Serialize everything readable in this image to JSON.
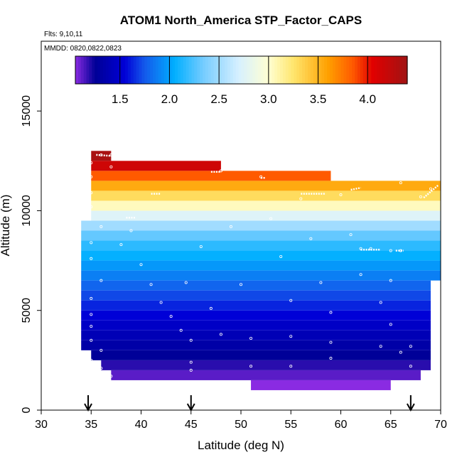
{
  "chart_data": {
    "type": "heatmap",
    "title": "ATOM1 North_America STP_Factor_CAPS",
    "flights_label": "Flts: 9,10,11",
    "dates_label": "MMDD: 0820,0822,0823",
    "xlabel": "Latitude (deg N)",
    "ylabel": "Altitude (m)",
    "xlim": [
      30,
      70
    ],
    "ylim": [
      0,
      18500
    ],
    "x_ticks": [
      30,
      35,
      40,
      45,
      50,
      55,
      60,
      65,
      70
    ],
    "y_ticks": [
      0,
      5000,
      10000,
      15000
    ],
    "colorbar": {
      "range": [
        1.05,
        4.4
      ],
      "ticks": [
        1.5,
        2.0,
        2.5,
        3.0,
        3.5,
        4.0
      ],
      "tick_labels": [
        "1.5",
        "2.0",
        "2.5",
        "3.0",
        "3.5",
        "4.0"
      ]
    },
    "altitude_bins": [
      {
        "bottom": 1000,
        "top": 1500,
        "value": 1.05,
        "xmin": 51,
        "xmax": 65
      },
      {
        "bottom": 1500,
        "top": 2000,
        "value": 1.12,
        "xmin": 37,
        "xmax": 68
      },
      {
        "bottom": 2000,
        "top": 2500,
        "value": 1.19,
        "xmin": 36,
        "xmax": 69
      },
      {
        "bottom": 2500,
        "top": 3000,
        "value": 1.26,
        "xmin": 35,
        "xmax": 69
      },
      {
        "bottom": 3000,
        "top": 3500,
        "value": 1.33,
        "xmin": 34,
        "xmax": 69
      },
      {
        "bottom": 3500,
        "top": 4000,
        "value": 1.4,
        "xmin": 34,
        "xmax": 69
      },
      {
        "bottom": 4000,
        "top": 4500,
        "value": 1.47,
        "xmin": 34,
        "xmax": 69
      },
      {
        "bottom": 4500,
        "top": 5000,
        "value": 1.55,
        "xmin": 34,
        "xmax": 69
      },
      {
        "bottom": 5000,
        "top": 5500,
        "value": 1.63,
        "xmin": 34,
        "xmax": 69
      },
      {
        "bottom": 5500,
        "top": 6000,
        "value": 1.71,
        "xmin": 34,
        "xmax": 69
      },
      {
        "bottom": 6000,
        "top": 6500,
        "value": 1.79,
        "xmin": 34,
        "xmax": 69
      },
      {
        "bottom": 6500,
        "top": 7000,
        "value": 1.88,
        "xmin": 34,
        "xmax": 70
      },
      {
        "bottom": 7000,
        "top": 7500,
        "value": 1.97,
        "xmin": 34,
        "xmax": 70
      },
      {
        "bottom": 7500,
        "top": 8000,
        "value": 2.06,
        "xmin": 34,
        "xmax": 70
      },
      {
        "bottom": 8000,
        "top": 8500,
        "value": 2.16,
        "xmin": 34,
        "xmax": 70
      },
      {
        "bottom": 8500,
        "top": 9000,
        "value": 2.3,
        "xmin": 34,
        "xmax": 70
      },
      {
        "bottom": 9000,
        "top": 9500,
        "value": 2.5,
        "xmin": 34,
        "xmax": 70
      },
      {
        "bottom": 9500,
        "top": 10000,
        "value": 2.75,
        "xmin": 35,
        "xmax": 70
      },
      {
        "bottom": 10000,
        "top": 10500,
        "value": 3.05,
        "xmin": 35,
        "xmax": 70
      },
      {
        "bottom": 10500,
        "top": 11000,
        "value": 3.3,
        "xmin": 35,
        "xmax": 70
      },
      {
        "bottom": 11000,
        "top": 11500,
        "value": 3.55,
        "xmin": 35,
        "xmax": 70
      },
      {
        "bottom": 11500,
        "top": 12000,
        "value": 3.85,
        "xmin": 35,
        "xmax": 59
      },
      {
        "bottom": 12000,
        "top": 12500,
        "value": 4.15,
        "xmin": 35,
        "xmax": 48
      },
      {
        "bottom": 12500,
        "top": 13000,
        "value": 4.35,
        "xmin": 35,
        "xmax": 37
      }
    ],
    "flight_track_points": [
      [
        35,
        12400
      ],
      [
        36,
        12800
      ],
      [
        37,
        12800
      ],
      [
        37,
        12200
      ],
      [
        35,
        11700
      ],
      [
        35,
        10900
      ],
      [
        35,
        10200
      ],
      [
        36,
        9200
      ],
      [
        35,
        8400
      ],
      [
        35,
        7600
      ],
      [
        36,
        6500
      ],
      [
        35,
        5600
      ],
      [
        35,
        4800
      ],
      [
        35,
        4200
      ],
      [
        35,
        3500
      ],
      [
        36,
        3000
      ],
      [
        35,
        2500
      ],
      [
        36,
        2100
      ],
      [
        37,
        1700
      ],
      [
        38,
        8300
      ],
      [
        39,
        9000
      ],
      [
        40,
        7300
      ],
      [
        41,
        6300
      ],
      [
        42,
        5400
      ],
      [
        43,
        4700
      ],
      [
        44,
        4000
      ],
      [
        44.5,
        6400
      ],
      [
        45,
        3500
      ],
      [
        45,
        2400
      ],
      [
        45,
        2000
      ],
      [
        46,
        8200
      ],
      [
        47,
        5100
      ],
      [
        48,
        3800
      ],
      [
        48,
        12000
      ],
      [
        49,
        9200
      ],
      [
        50,
        6300
      ],
      [
        51,
        3600
      ],
      [
        51,
        2200
      ],
      [
        52,
        11700
      ],
      [
        53,
        9600
      ],
      [
        54,
        7700
      ],
      [
        55,
        5500
      ],
      [
        55,
        3700
      ],
      [
        55,
        2200
      ],
      [
        56,
        10600
      ],
      [
        57,
        8600
      ],
      [
        58,
        6400
      ],
      [
        59,
        4900
      ],
      [
        59,
        3400
      ],
      [
        59,
        2600
      ],
      [
        60,
        10800
      ],
      [
        61,
        8800
      ],
      [
        62,
        8100
      ],
      [
        62,
        6800
      ],
      [
        63,
        8100
      ],
      [
        64,
        5400
      ],
      [
        64,
        3200
      ],
      [
        65,
        8000
      ],
      [
        65,
        6500
      ],
      [
        65,
        4300
      ],
      [
        66,
        8000
      ],
      [
        66,
        2900
      ],
      [
        67,
        3200
      ],
      [
        67,
        2200
      ],
      [
        68,
        10700
      ],
      [
        69,
        11100
      ],
      [
        64,
        900
      ],
      [
        65,
        700
      ],
      [
        66,
        11400
      ]
    ],
    "flight_track_lines": [
      [
        [
          35.5,
          12800
        ],
        [
          37,
          12750
        ]
      ],
      [
        [
          47,
          11950
        ],
        [
          48,
          11950
        ]
      ],
      [
        [
          52,
          11650
        ],
        [
          52.5,
          11650
        ]
      ],
      [
        [
          56,
          10850
        ],
        [
          58.5,
          10850
        ]
      ],
      [
        [
          61,
          11050
        ],
        [
          62,
          11150
        ]
      ],
      [
        [
          62,
          8050
        ],
        [
          64,
          8050
        ]
      ],
      [
        [
          65.5,
          8000
        ],
        [
          66.3,
          8000
        ]
      ],
      [
        [
          38.5,
          9650
        ],
        [
          39.5,
          9650
        ]
      ],
      [
        [
          41,
          10850
        ],
        [
          42,
          10850
        ]
      ],
      [
        [
          68.3,
          10650
        ],
        [
          69.8,
          11300
        ]
      ]
    ],
    "arrows_at_latitude": [
      34.7,
      45,
      67
    ]
  }
}
